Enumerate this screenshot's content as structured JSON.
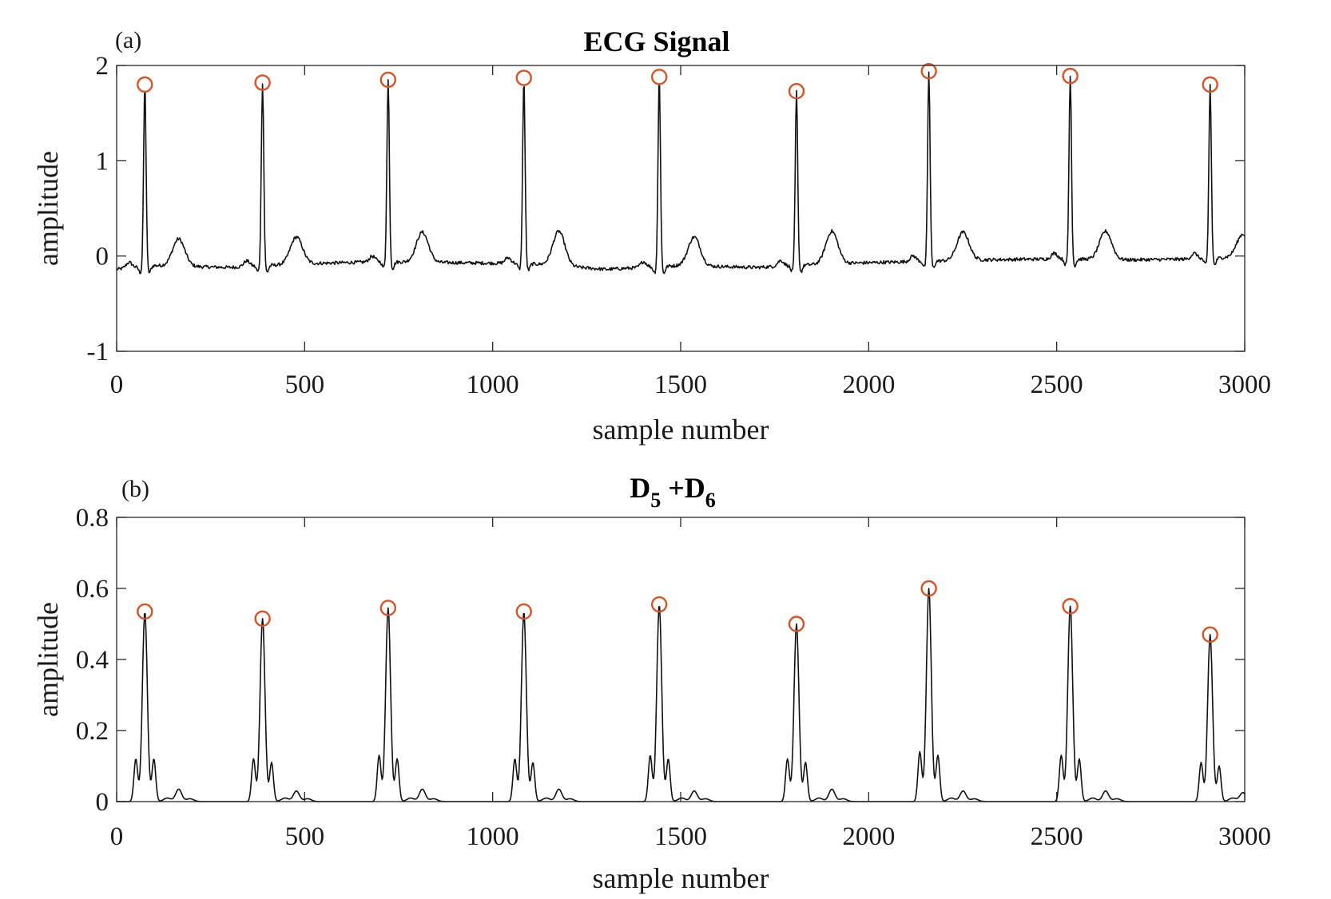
{
  "figure": {
    "panels": [
      {
        "id": "a",
        "panel_label": "(a)",
        "title_main": "ECG Signal",
        "title_sub1": "",
        "title_mid": "",
        "title_sub2": "",
        "xlabel": "sample number",
        "ylabel": "amplitude"
      },
      {
        "id": "b",
        "panel_label": "(b)",
        "title_main": "D",
        "title_sub1": "5",
        "title_mid": " +D",
        "title_sub2": "6",
        "xlabel": "sample number",
        "ylabel": "amplitude"
      }
    ]
  },
  "chart_data": [
    {
      "type": "line",
      "title": "ECG Signal",
      "xlabel": "sample number",
      "ylabel": "amplitude",
      "xlim": [
        0,
        3000
      ],
      "ylim": [
        -1,
        2
      ],
      "xticks": [
        0,
        500,
        1000,
        1500,
        2000,
        2500,
        3000
      ],
      "yticks": [
        -1,
        0,
        1,
        2
      ],
      "xtick_labels": [
        "0",
        "500",
        "1000",
        "1500",
        "2000",
        "2500",
        "3000"
      ],
      "ytick_labels": [
        "-1",
        "0",
        "1",
        "2"
      ],
      "grid": false,
      "line_color": "#111111",
      "marker_color": "#d4552a",
      "peaks": {
        "x": [
          75,
          388,
          722,
          1083,
          1443,
          1808,
          2160,
          2536,
          2908
        ],
        "y": [
          1.8,
          1.82,
          1.85,
          1.87,
          1.88,
          1.73,
          1.94,
          1.89,
          1.8
        ]
      },
      "t_waves": {
        "x": [
          165,
          478,
          813,
          1176,
          1536,
          1902,
          2251,
          2630,
          2995
        ],
        "y": [
          0.18,
          0.2,
          0.25,
          0.26,
          0.2,
          0.26,
          0.25,
          0.26,
          0.23
        ]
      },
      "baseline": {
        "x": [
          0,
          100,
          300,
          500,
          700,
          900,
          1100,
          1300,
          1500,
          1700,
          1900,
          2100,
          2300,
          2500,
          2700,
          2900,
          3000
        ],
        "y": [
          -0.14,
          -0.1,
          -0.12,
          -0.08,
          -0.06,
          -0.07,
          -0.08,
          -0.14,
          -0.1,
          -0.12,
          -0.08,
          -0.06,
          -0.04,
          -0.03,
          -0.04,
          -0.03,
          0.0
        ]
      }
    },
    {
      "type": "line",
      "title": "D5 +D6",
      "xlabel": "sample number",
      "ylabel": "amplitude",
      "xlim": [
        0,
        3000
      ],
      "ylim": [
        0,
        0.8
      ],
      "xticks": [
        0,
        500,
        1000,
        1500,
        2000,
        2500,
        3000
      ],
      "yticks": [
        0,
        0.2,
        0.4,
        0.6,
        0.8
      ],
      "xtick_labels": [
        "0",
        "500",
        "1000",
        "1500",
        "2000",
        "2500",
        "3000"
      ],
      "ytick_labels": [
        "0",
        "0.2",
        "0.4",
        "0.6",
        "0.8"
      ],
      "grid": false,
      "line_color": "#111111",
      "marker_color": "#d4552a",
      "peaks": {
        "x": [
          75,
          388,
          722,
          1083,
          1443,
          1808,
          2160,
          2536,
          2908
        ],
        "y": [
          0.535,
          0.515,
          0.545,
          0.535,
          0.555,
          0.5,
          0.6,
          0.55,
          0.47
        ]
      },
      "side_lobes": {
        "left_y": [
          0.12,
          0.12,
          0.13,
          0.12,
          0.13,
          0.12,
          0.14,
          0.13,
          0.11
        ],
        "right_y": [
          0.12,
          0.11,
          0.12,
          0.11,
          0.12,
          0.11,
          0.13,
          0.12,
          0.1
        ]
      },
      "t_waves": {
        "x": [
          165,
          478,
          813,
          1176,
          1536,
          1902,
          2251,
          2630,
          2995
        ],
        "y": [
          0.035,
          0.03,
          0.035,
          0.035,
          0.03,
          0.035,
          0.03,
          0.03,
          0.025
        ]
      }
    }
  ]
}
